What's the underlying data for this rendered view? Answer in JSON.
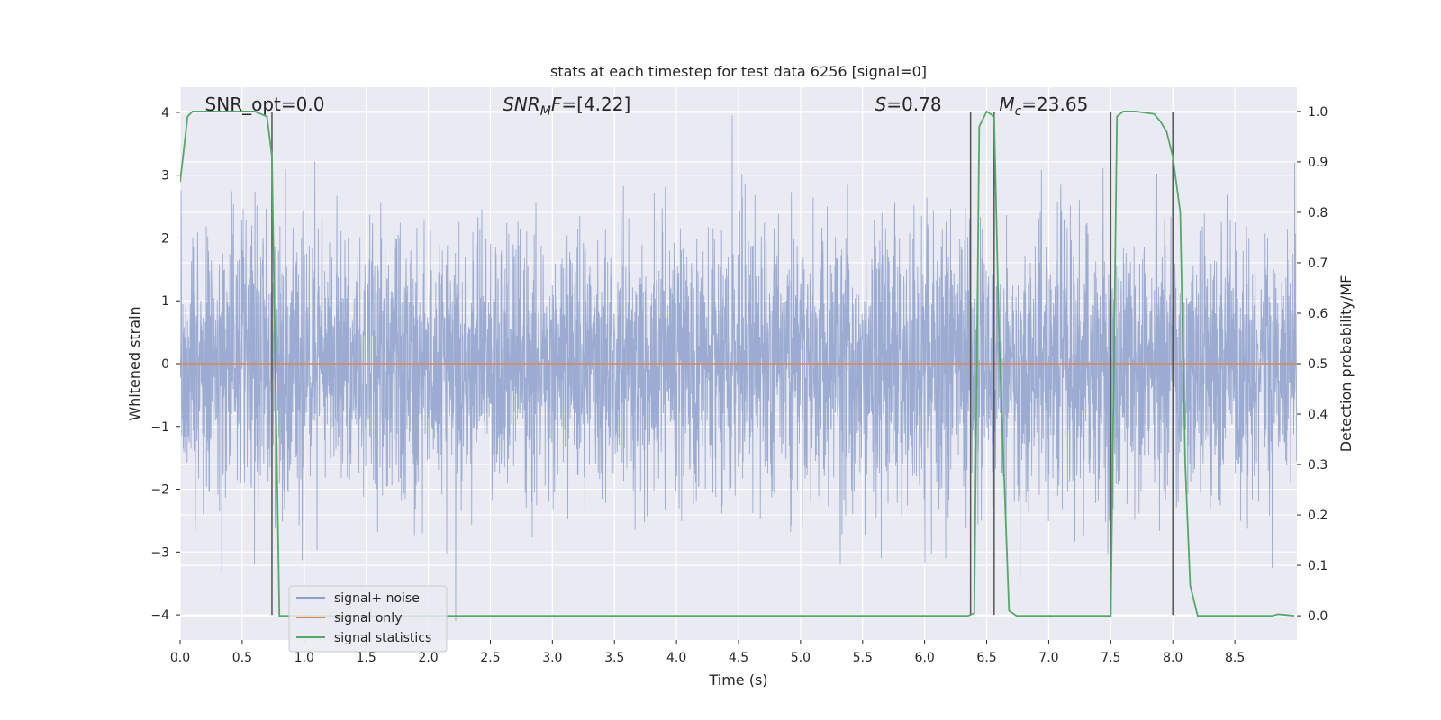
{
  "chart_data": {
    "type": "line",
    "title": "stats at each timestep for test data 6256 [signal=0]",
    "xlabel": "Time (s)",
    "ylabel": "Whitened strain",
    "y2label": "Detection probability/MF",
    "xlim": [
      0,
      9
    ],
    "ylim": [
      -4.4,
      4.4
    ],
    "y2lim": [
      -0.048,
      1.048
    ],
    "xticks": [
      "0.0",
      "0.5",
      "1.0",
      "1.5",
      "2.0",
      "2.5",
      "3.0",
      "3.5",
      "4.0",
      "4.5",
      "5.0",
      "5.5",
      "6.0",
      "6.5",
      "7.0",
      "7.5",
      "8.0",
      "8.5"
    ],
    "yticks": [
      "4",
      "3",
      "2",
      "1",
      "0",
      "−1",
      "−2",
      "−3",
      "−4"
    ],
    "y2ticks": [
      "1.0",
      "0.9",
      "0.8",
      "0.7",
      "0.6",
      "0.5",
      "0.4",
      "0.3",
      "0.2",
      "0.1",
      "0.0"
    ],
    "grid": true,
    "legend_placement": "lower-left",
    "annotations": [
      {
        "text": "SNR_opt=0.0",
        "x": 0.2
      },
      {
        "text": "SNR_MF=[4.22]",
        "x": 2.6
      },
      {
        "text": "S=0.78",
        "x": 5.6
      },
      {
        "text": "M_c=23.65",
        "x": 6.6
      }
    ],
    "vertical_lines": [
      0.74,
      6.37,
      6.56,
      7.5,
      8.0
    ],
    "series": [
      {
        "name": "signal+ noise",
        "color": "#8da0cb",
        "kind": "noise",
        "sigma": 1.0,
        "samples": 4608,
        "peaks": [
          [
            4.45,
            3.95
          ],
          [
            2.22,
            -4.1
          ],
          [
            5.32,
            -3.2
          ],
          [
            6.17,
            -3.1
          ],
          [
            0.85,
            3.1
          ]
        ]
      },
      {
        "name": "signal only",
        "color": "#dd8452",
        "kind": "constant",
        "value": 0
      },
      {
        "name": "signal statistics",
        "color": "#55a868",
        "kind": "probability",
        "x": [
          0.0,
          0.06,
          0.1,
          0.15,
          0.6,
          0.7,
          0.74,
          0.8,
          0.86,
          6.35,
          6.4,
          6.44,
          6.5,
          6.56,
          6.6,
          6.68,
          6.74,
          6.8,
          7.5,
          7.55,
          7.6,
          7.7,
          7.85,
          7.9,
          7.95,
          8.0,
          8.06,
          8.1,
          8.14,
          8.2,
          8.8,
          8.85,
          8.98
        ],
        "values": [
          0.86,
          0.99,
          1.0,
          1.0,
          1.0,
          0.99,
          0.91,
          0.0,
          0.0,
          0.0,
          0.005,
          0.97,
          1.0,
          0.99,
          0.55,
          0.01,
          0.0,
          0.0,
          0.0,
          0.99,
          1.0,
          1.0,
          0.995,
          0.98,
          0.96,
          0.91,
          0.8,
          0.3,
          0.06,
          0.0,
          0.0,
          0.003,
          0.0
        ]
      }
    ]
  }
}
